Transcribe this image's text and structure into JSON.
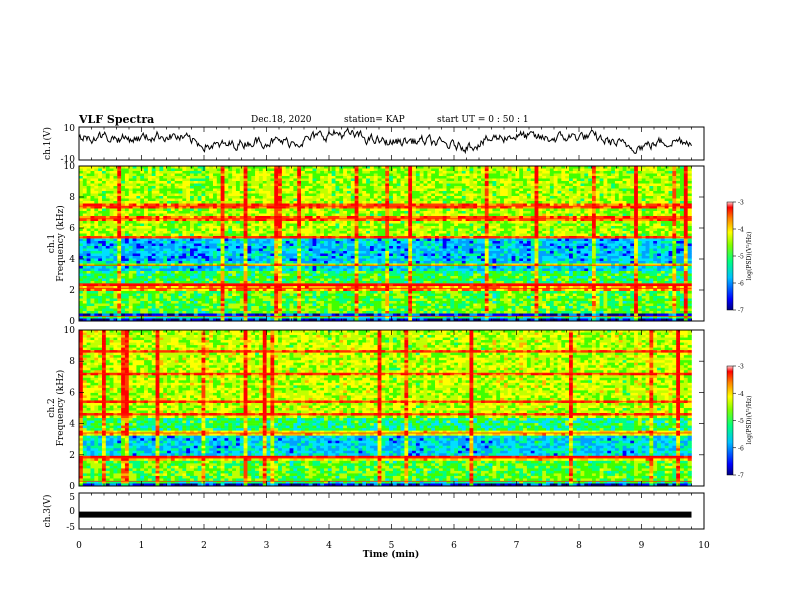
{
  "header": {
    "title": "VLF Spectra",
    "date": "Dec.18, 2020",
    "station": "station= KAP",
    "start": "start  UT =   0 : 50 : 1"
  },
  "colors": {
    "spectrogram_scale": [
      "#000080",
      "#0000ff",
      "#00a0ff",
      "#00e0ff",
      "#00ff80",
      "#40ff00",
      "#c0ff00",
      "#ffff00",
      "#ffb000",
      "#ff4000",
      "#ff0000",
      "#ffd0d0"
    ]
  },
  "chart_data": [
    {
      "type": "line",
      "panel": "ch1-waveform",
      "ylabel": "ch.1(V)",
      "ylim": [
        -10,
        10
      ],
      "ytick_labels": [
        "10",
        "-10"
      ],
      "xlim": [
        0,
        10
      ],
      "x_max_data": 9.8,
      "description_level": "noisy waveform oscillating mostly between -3 and 7 V"
    },
    {
      "type": "heatmap",
      "panel": "ch1-spectrogram",
      "ylabel": "ch.1\nFrequency (kHz)",
      "ylim": [
        0,
        10
      ],
      "ytick_labels": [
        "0",
        "2",
        "4",
        "6",
        "8",
        "10"
      ],
      "xlim": [
        0,
        10
      ],
      "x_max_data": 9.8,
      "colorbar": {
        "label": "log(PSD)(V²/Hz)",
        "range": [
          -7,
          -3
        ],
        "tick_labels": [
          "-3",
          "-4",
          "-5",
          "-6",
          "-7"
        ]
      },
      "bands": [
        {
          "from": 0,
          "to": 0.5,
          "level": -6.5
        },
        {
          "from": 0.5,
          "to": 2.2,
          "level": -5.0
        },
        {
          "from": 2.2,
          "to": 2.5,
          "level": -4.0
        },
        {
          "from": 2.5,
          "to": 3.2,
          "level": -5.2
        },
        {
          "from": 3.2,
          "to": 3.8,
          "level": -5.8
        },
        {
          "from": 3.8,
          "to": 5.3,
          "level": -5.9
        },
        {
          "from": 5.3,
          "to": 10,
          "level": -4.7
        }
      ],
      "strong_lines_khz": [
        0.3,
        2.1,
        2.4,
        3.6,
        5.4,
        6.6,
        7.4
      ]
    },
    {
      "type": "heatmap",
      "panel": "ch2-spectrogram",
      "ylabel": "ch.2\nFrequency (kHz)",
      "ylim": [
        0,
        10
      ],
      "ytick_labels": [
        "0",
        "2",
        "4",
        "6",
        "8",
        "10"
      ],
      "xlim": [
        0,
        10
      ],
      "x_max_data": 9.8,
      "colorbar": {
        "label": "log(PSD)(V²/Hz)",
        "range": [
          -7,
          -3
        ],
        "tick_labels": [
          "-3",
          "-4",
          "-5",
          "-6",
          "-7"
        ]
      },
      "bands": [
        {
          "from": 0,
          "to": 0.4,
          "level": -6.5
        },
        {
          "from": 0.4,
          "to": 1.6,
          "level": -5.0
        },
        {
          "from": 1.6,
          "to": 1.9,
          "level": -4.2
        },
        {
          "from": 1.9,
          "to": 3.3,
          "level": -5.8
        },
        {
          "from": 3.3,
          "to": 4.3,
          "level": -5.3
        },
        {
          "from": 4.3,
          "to": 10,
          "level": -4.6
        }
      ],
      "strong_lines_khz": [
        0.3,
        1.8,
        3.4,
        4.6,
        5.4,
        7.2,
        8.6
      ]
    },
    {
      "type": "line",
      "panel": "ch3-waveform",
      "ylabel": "ch.3(V)",
      "ylim": [
        -5,
        5
      ],
      "ytick_labels": [
        "5",
        "0",
        "-5"
      ],
      "xlim": [
        0,
        10
      ],
      "x_max_data": 9.8,
      "constant_value": -1
    },
    {
      "type": "axis",
      "xlabel": "Time (min)",
      "xtick_labels": [
        "0",
        "1",
        "2",
        "3",
        "4",
        "5",
        "6",
        "7",
        "8",
        "9",
        "10"
      ]
    }
  ]
}
